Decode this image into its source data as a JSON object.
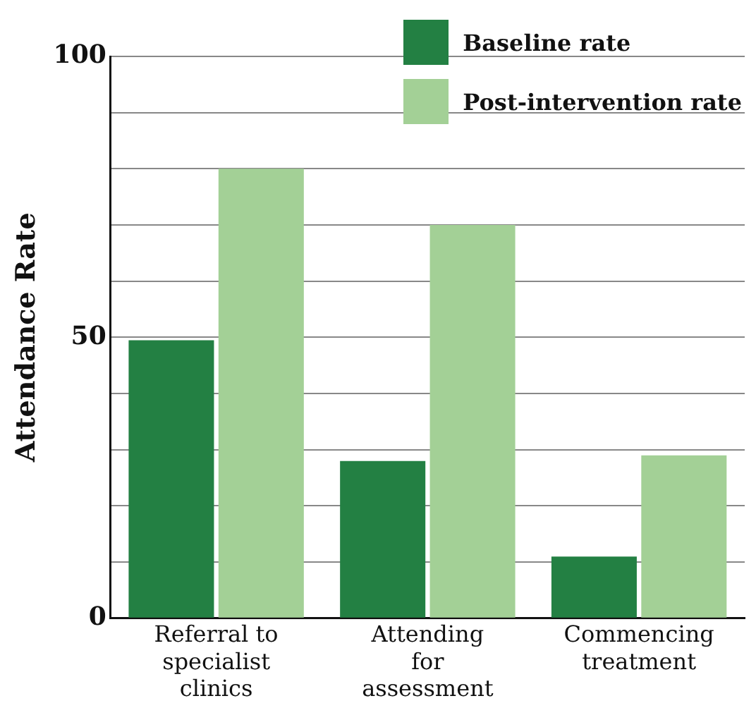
{
  "chart_data": {
    "type": "bar",
    "ylabel": "Attendance Rate",
    "categories": [
      "Referral to specialist clinics",
      "Attending for assessment",
      "Commencing treatment"
    ],
    "series": [
      {
        "name": "Baseline rate",
        "color": "#238043",
        "values": [
          49.5,
          28,
          11
        ]
      },
      {
        "name": "Post-intervention rate",
        "color": "#a3d096",
        "values": [
          80,
          70,
          29
        ]
      }
    ],
    "ylim": [
      0,
      100
    ],
    "yticks": [
      0,
      {
        "value": 10,
        "label": null
      },
      {
        "value": 20,
        "label": null
      },
      {
        "value": 30,
        "label": null
      },
      {
        "value": 40,
        "label": null
      },
      50,
      {
        "value": 60,
        "label": null
      },
      {
        "value": 70,
        "label": null
      },
      {
        "value": 80,
        "label": null
      },
      {
        "value": 90,
        "label": null
      },
      100
    ],
    "grid": "y",
    "legend": "top right"
  }
}
